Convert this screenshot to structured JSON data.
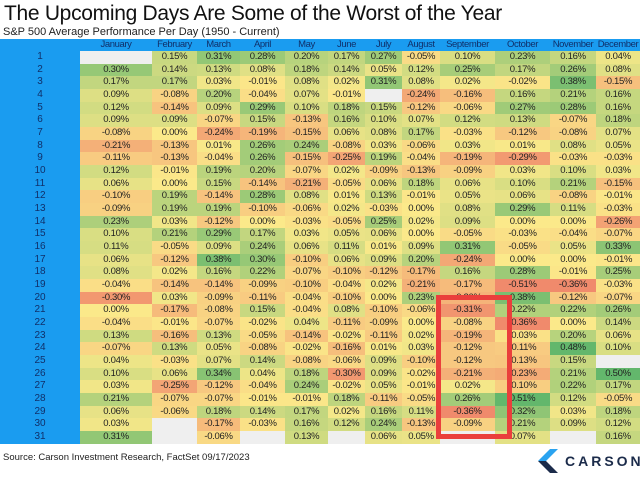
{
  "title": "The Upcoming Days Are Some of the Worst of the Year",
  "subtitle": "S&P 500 Average Performance Per Day (1950 - Current)",
  "source": "Source: Carson Investment Research, FactSet 09/17/2023",
  "logo": "CARSON",
  "highlight": {
    "month": "September",
    "days": [
      20,
      30
    ],
    "color": "#ea3f3c"
  },
  "chart_data": {
    "type": "heatmap",
    "title": "S&P 500 Average Performance Per Day (1950 - Current)",
    "unit": "%",
    "columns": [
      "January",
      "February",
      "March",
      "April",
      "May",
      "June",
      "July",
      "August",
      "September",
      "October",
      "November",
      "December"
    ],
    "rows": [
      "1",
      "2",
      "3",
      "4",
      "5",
      "6",
      "7",
      "8",
      "9",
      "10",
      "11",
      "12",
      "13",
      "14",
      "15",
      "16",
      "17",
      "18",
      "19",
      "20",
      "21",
      "22",
      "23",
      "24",
      "25",
      "26",
      "27",
      "28",
      "29",
      "30",
      "31"
    ],
    "values": [
      [
        null,
        0.15,
        0.31,
        0.28,
        0.2,
        0.17,
        0.27,
        -0.05,
        0.1,
        0.23,
        0.16,
        0.04
      ],
      [
        0.3,
        0.14,
        0.13,
        0.08,
        0.18,
        0.14,
        0.05,
        0.12,
        0.25,
        0.17,
        0.26,
        0.08
      ],
      [
        0.17,
        0.17,
        0.03,
        -0.01,
        0.08,
        0.02,
        0.31,
        0.08,
        0.02,
        -0.02,
        0.38,
        -0.15
      ],
      [
        0.09,
        -0.08,
        0.2,
        -0.04,
        0.07,
        -0.01,
        null,
        -0.24,
        -0.16,
        0.16,
        0.21,
        0.16
      ],
      [
        0.12,
        -0.14,
        0.09,
        0.29,
        0.1,
        0.18,
        0.15,
        -0.12,
        -0.06,
        0.27,
        0.28,
        0.16
      ],
      [
        0.09,
        0.09,
        -0.07,
        0.15,
        -0.13,
        0.16,
        0.1,
        0.07,
        0.12,
        0.13,
        -0.07,
        0.18
      ],
      [
        -0.08,
        0.0,
        -0.24,
        -0.19,
        -0.15,
        0.06,
        0.08,
        0.17,
        -0.03,
        -0.12,
        -0.08,
        0.07
      ],
      [
        -0.21,
        -0.13,
        0.01,
        0.26,
        0.24,
        -0.08,
        0.03,
        -0.06,
        0.03,
        0.01,
        0.08,
        0.05
      ],
      [
        -0.11,
        -0.13,
        -0.04,
        0.26,
        -0.15,
        -0.25,
        0.19,
        -0.04,
        -0.19,
        -0.29,
        -0.03,
        -0.03
      ],
      [
        0.12,
        -0.01,
        0.19,
        0.2,
        -0.07,
        0.02,
        -0.09,
        -0.13,
        -0.09,
        0.03,
        0.1,
        0.03
      ],
      [
        0.06,
        0.0,
        0.15,
        -0.14,
        -0.21,
        -0.05,
        0.06,
        0.18,
        0.06,
        0.1,
        0.21,
        -0.15
      ],
      [
        -0.1,
        0.19,
        -0.14,
        0.28,
        0.08,
        0.01,
        0.13,
        -0.01,
        0.05,
        0.06,
        -0.08,
        -0.01
      ],
      [
        -0.09,
        0.19,
        0.19,
        -0.1,
        -0.06,
        0.02,
        -0.03,
        0.0,
        0.08,
        0.29,
        0.11,
        -0.03
      ],
      [
        0.23,
        0.03,
        -0.12,
        0.0,
        -0.03,
        -0.05,
        0.25,
        0.02,
        0.09,
        0.0,
        0.0,
        -0.26
      ],
      [
        0.1,
        0.21,
        0.29,
        0.17,
        0.03,
        0.05,
        0.06,
        0.0,
        -0.05,
        -0.03,
        -0.04,
        -0.07
      ],
      [
        0.11,
        -0.05,
        0.09,
        0.24,
        0.06,
        0.11,
        0.01,
        0.09,
        0.31,
        -0.05,
        0.05,
        0.33
      ],
      [
        0.06,
        -0.12,
        0.38,
        0.3,
        -0.1,
        0.06,
        0.09,
        0.2,
        -0.24,
        0.0,
        0.0,
        -0.01
      ],
      [
        0.08,
        0.02,
        0.16,
        0.22,
        -0.07,
        -0.1,
        -0.12,
        -0.17,
        0.16,
        0.28,
        -0.01,
        0.25
      ],
      [
        -0.04,
        -0.14,
        -0.14,
        -0.09,
        -0.1,
        -0.04,
        0.02,
        -0.21,
        -0.17,
        -0.51,
        -0.36,
        -0.03
      ],
      [
        -0.3,
        0.03,
        -0.09,
        -0.11,
        -0.04,
        -0.1,
        0.0,
        0.23,
        -0.2,
        0.38,
        -0.12,
        -0.07
      ],
      [
        0.0,
        -0.17,
        -0.08,
        0.15,
        -0.04,
        0.08,
        -0.1,
        -0.06,
        -0.31,
        0.22,
        0.22,
        0.26
      ],
      [
        -0.04,
        -0.01,
        -0.07,
        -0.02,
        0.04,
        -0.11,
        -0.09,
        0.0,
        -0.08,
        -0.36,
        0.0,
        0.14
      ],
      [
        0.13,
        -0.16,
        0.13,
        -0.05,
        -0.14,
        -0.02,
        -0.11,
        0.02,
        -0.19,
        -0.03,
        0.2,
        0.06
      ],
      [
        -0.07,
        0.13,
        0.05,
        -0.08,
        -0.02,
        -0.16,
        0.01,
        0.03,
        -0.12,
        -0.11,
        0.48,
        0.1
      ],
      [
        0.04,
        -0.03,
        0.07,
        0.14,
        -0.08,
        -0.06,
        0.09,
        -0.1,
        -0.12,
        -0.13,
        0.15,
        null
      ],
      [
        0.1,
        0.06,
        0.34,
        0.04,
        0.18,
        -0.3,
        0.09,
        -0.02,
        -0.21,
        -0.23,
        0.21,
        0.5
      ],
      [
        0.03,
        -0.25,
        -0.12,
        -0.04,
        0.24,
        -0.02,
        0.05,
        -0.01,
        0.02,
        -0.1,
        0.22,
        0.17
      ],
      [
        0.21,
        -0.07,
        -0.07,
        -0.01,
        -0.01,
        0.18,
        -0.11,
        -0.05,
        0.26,
        0.51,
        0.12,
        -0.05
      ],
      [
        0.06,
        -0.06,
        0.18,
        0.14,
        0.17,
        0.02,
        0.16,
        0.11,
        -0.36,
        0.32,
        0.03,
        0.18
      ],
      [
        0.03,
        null,
        -0.17,
        -0.03,
        0.16,
        0.12,
        0.24,
        -0.13,
        -0.09,
        0.21,
        0.09,
        0.12
      ],
      [
        0.31,
        null,
        -0.06,
        null,
        0.13,
        null,
        0.06,
        0.05,
        null,
        0.07,
        null,
        0.16
      ]
    ],
    "color_scale": {
      "negative": "#f08a6c",
      "neutral": "#fbe98a",
      "positive": "#63b76c"
    }
  }
}
